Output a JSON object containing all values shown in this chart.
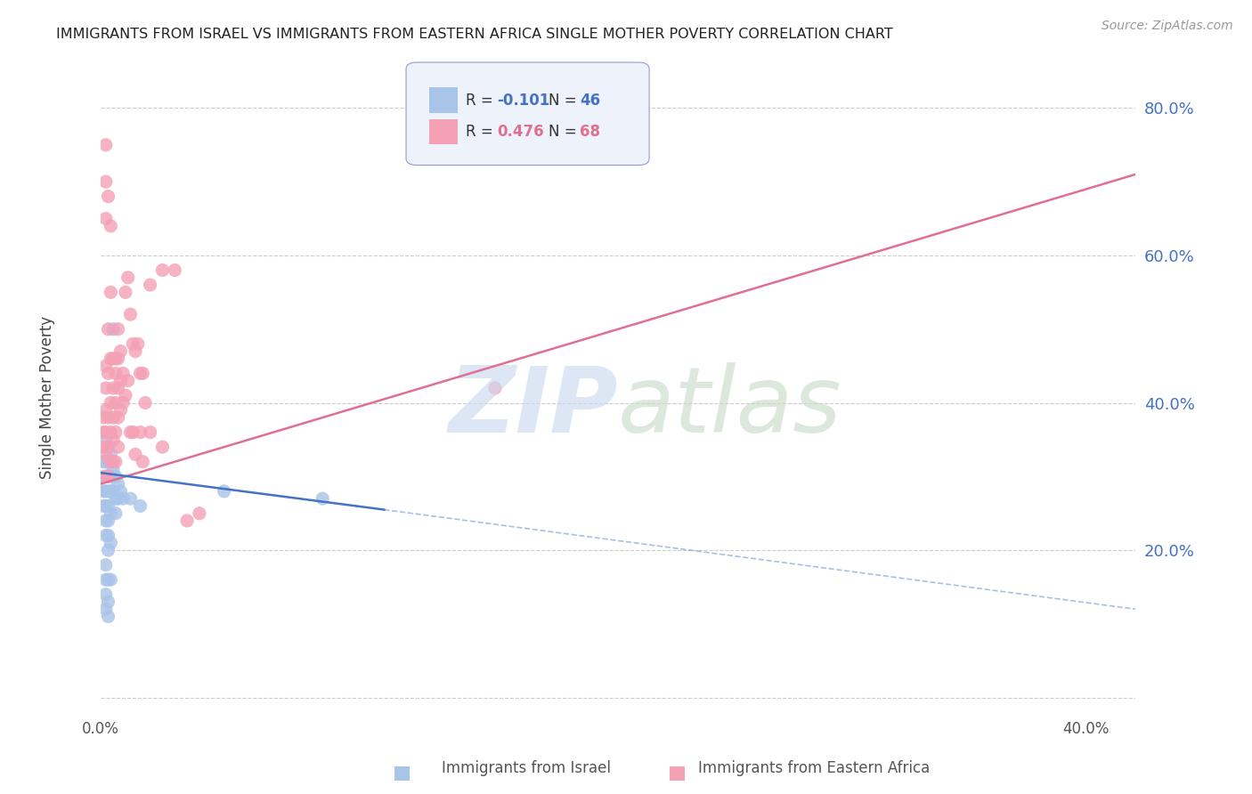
{
  "title": "IMMIGRANTS FROM ISRAEL VS IMMIGRANTS FROM EASTERN AFRICA SINGLE MOTHER POVERTY CORRELATION CHART",
  "source": "Source: ZipAtlas.com",
  "ylabel": "Single Mother Poverty",
  "yticks": [
    0.0,
    0.2,
    0.4,
    0.6,
    0.8
  ],
  "ytick_labels": [
    "",
    "20.0%",
    "40.0%",
    "60.0%",
    "80.0%"
  ],
  "xlim": [
    0.0,
    0.42
  ],
  "ylim": [
    -0.02,
    0.88
  ],
  "israel_R": -0.101,
  "israel_N": 46,
  "eastafrica_R": 0.476,
  "eastafrica_N": 68,
  "israel_color": "#a8c4e8",
  "eastafrica_color": "#f4a0b5",
  "israel_line_color": "#4472c4",
  "eastafrica_line_color": "#e07090",
  "israel_line_solid": [
    [
      0.0,
      0.305
    ],
    [
      0.115,
      0.255
    ]
  ],
  "israel_line_dashed": [
    [
      0.115,
      0.255
    ],
    [
      0.42,
      0.12
    ]
  ],
  "eastafrica_line_solid": [
    [
      0.0,
      0.29
    ],
    [
      0.42,
      0.71
    ]
  ],
  "israel_points": [
    [
      0.001,
      0.32
    ],
    [
      0.001,
      0.3
    ],
    [
      0.001,
      0.28
    ],
    [
      0.001,
      0.26
    ],
    [
      0.002,
      0.35
    ],
    [
      0.002,
      0.32
    ],
    [
      0.002,
      0.3
    ],
    [
      0.002,
      0.28
    ],
    [
      0.002,
      0.26
    ],
    [
      0.002,
      0.24
    ],
    [
      0.002,
      0.22
    ],
    [
      0.002,
      0.18
    ],
    [
      0.002,
      0.16
    ],
    [
      0.002,
      0.14
    ],
    [
      0.002,
      0.12
    ],
    [
      0.003,
      0.34
    ],
    [
      0.003,
      0.32
    ],
    [
      0.003,
      0.3
    ],
    [
      0.003,
      0.28
    ],
    [
      0.003,
      0.26
    ],
    [
      0.003,
      0.24
    ],
    [
      0.003,
      0.22
    ],
    [
      0.003,
      0.2
    ],
    [
      0.003,
      0.16
    ],
    [
      0.003,
      0.13
    ],
    [
      0.003,
      0.11
    ],
    [
      0.004,
      0.33
    ],
    [
      0.004,
      0.3
    ],
    [
      0.004,
      0.28
    ],
    [
      0.004,
      0.25
    ],
    [
      0.004,
      0.21
    ],
    [
      0.004,
      0.16
    ],
    [
      0.005,
      0.31
    ],
    [
      0.005,
      0.28
    ],
    [
      0.005,
      0.5
    ],
    [
      0.006,
      0.3
    ],
    [
      0.006,
      0.27
    ],
    [
      0.006,
      0.25
    ],
    [
      0.007,
      0.29
    ],
    [
      0.007,
      0.27
    ],
    [
      0.008,
      0.28
    ],
    [
      0.009,
      0.27
    ],
    [
      0.012,
      0.27
    ],
    [
      0.016,
      0.26
    ],
    [
      0.05,
      0.28
    ],
    [
      0.09,
      0.27
    ]
  ],
  "eastafrica_points": [
    [
      0.001,
      0.38
    ],
    [
      0.001,
      0.36
    ],
    [
      0.001,
      0.34
    ],
    [
      0.002,
      0.75
    ],
    [
      0.002,
      0.7
    ],
    [
      0.002,
      0.65
    ],
    [
      0.002,
      0.45
    ],
    [
      0.002,
      0.42
    ],
    [
      0.002,
      0.39
    ],
    [
      0.002,
      0.36
    ],
    [
      0.002,
      0.33
    ],
    [
      0.002,
      0.3
    ],
    [
      0.003,
      0.68
    ],
    [
      0.003,
      0.5
    ],
    [
      0.003,
      0.44
    ],
    [
      0.003,
      0.38
    ],
    [
      0.003,
      0.34
    ],
    [
      0.003,
      0.3
    ],
    [
      0.004,
      0.64
    ],
    [
      0.004,
      0.55
    ],
    [
      0.004,
      0.46
    ],
    [
      0.004,
      0.4
    ],
    [
      0.004,
      0.36
    ],
    [
      0.004,
      0.32
    ],
    [
      0.005,
      0.46
    ],
    [
      0.005,
      0.42
    ],
    [
      0.005,
      0.38
    ],
    [
      0.005,
      0.35
    ],
    [
      0.005,
      0.32
    ],
    [
      0.006,
      0.46
    ],
    [
      0.006,
      0.44
    ],
    [
      0.006,
      0.4
    ],
    [
      0.006,
      0.36
    ],
    [
      0.006,
      0.32
    ],
    [
      0.007,
      0.5
    ],
    [
      0.007,
      0.46
    ],
    [
      0.007,
      0.42
    ],
    [
      0.007,
      0.38
    ],
    [
      0.007,
      0.34
    ],
    [
      0.008,
      0.47
    ],
    [
      0.008,
      0.43
    ],
    [
      0.008,
      0.39
    ],
    [
      0.009,
      0.44
    ],
    [
      0.009,
      0.4
    ],
    [
      0.01,
      0.55
    ],
    [
      0.01,
      0.41
    ],
    [
      0.011,
      0.57
    ],
    [
      0.011,
      0.43
    ],
    [
      0.012,
      0.52
    ],
    [
      0.012,
      0.36
    ],
    [
      0.013,
      0.48
    ],
    [
      0.013,
      0.36
    ],
    [
      0.014,
      0.47
    ],
    [
      0.014,
      0.33
    ],
    [
      0.015,
      0.48
    ],
    [
      0.016,
      0.44
    ],
    [
      0.016,
      0.36
    ],
    [
      0.017,
      0.44
    ],
    [
      0.017,
      0.32
    ],
    [
      0.018,
      0.4
    ],
    [
      0.02,
      0.56
    ],
    [
      0.02,
      0.36
    ],
    [
      0.025,
      0.58
    ],
    [
      0.025,
      0.34
    ],
    [
      0.03,
      0.58
    ],
    [
      0.035,
      0.24
    ],
    [
      0.04,
      0.25
    ],
    [
      0.16,
      0.42
    ]
  ]
}
